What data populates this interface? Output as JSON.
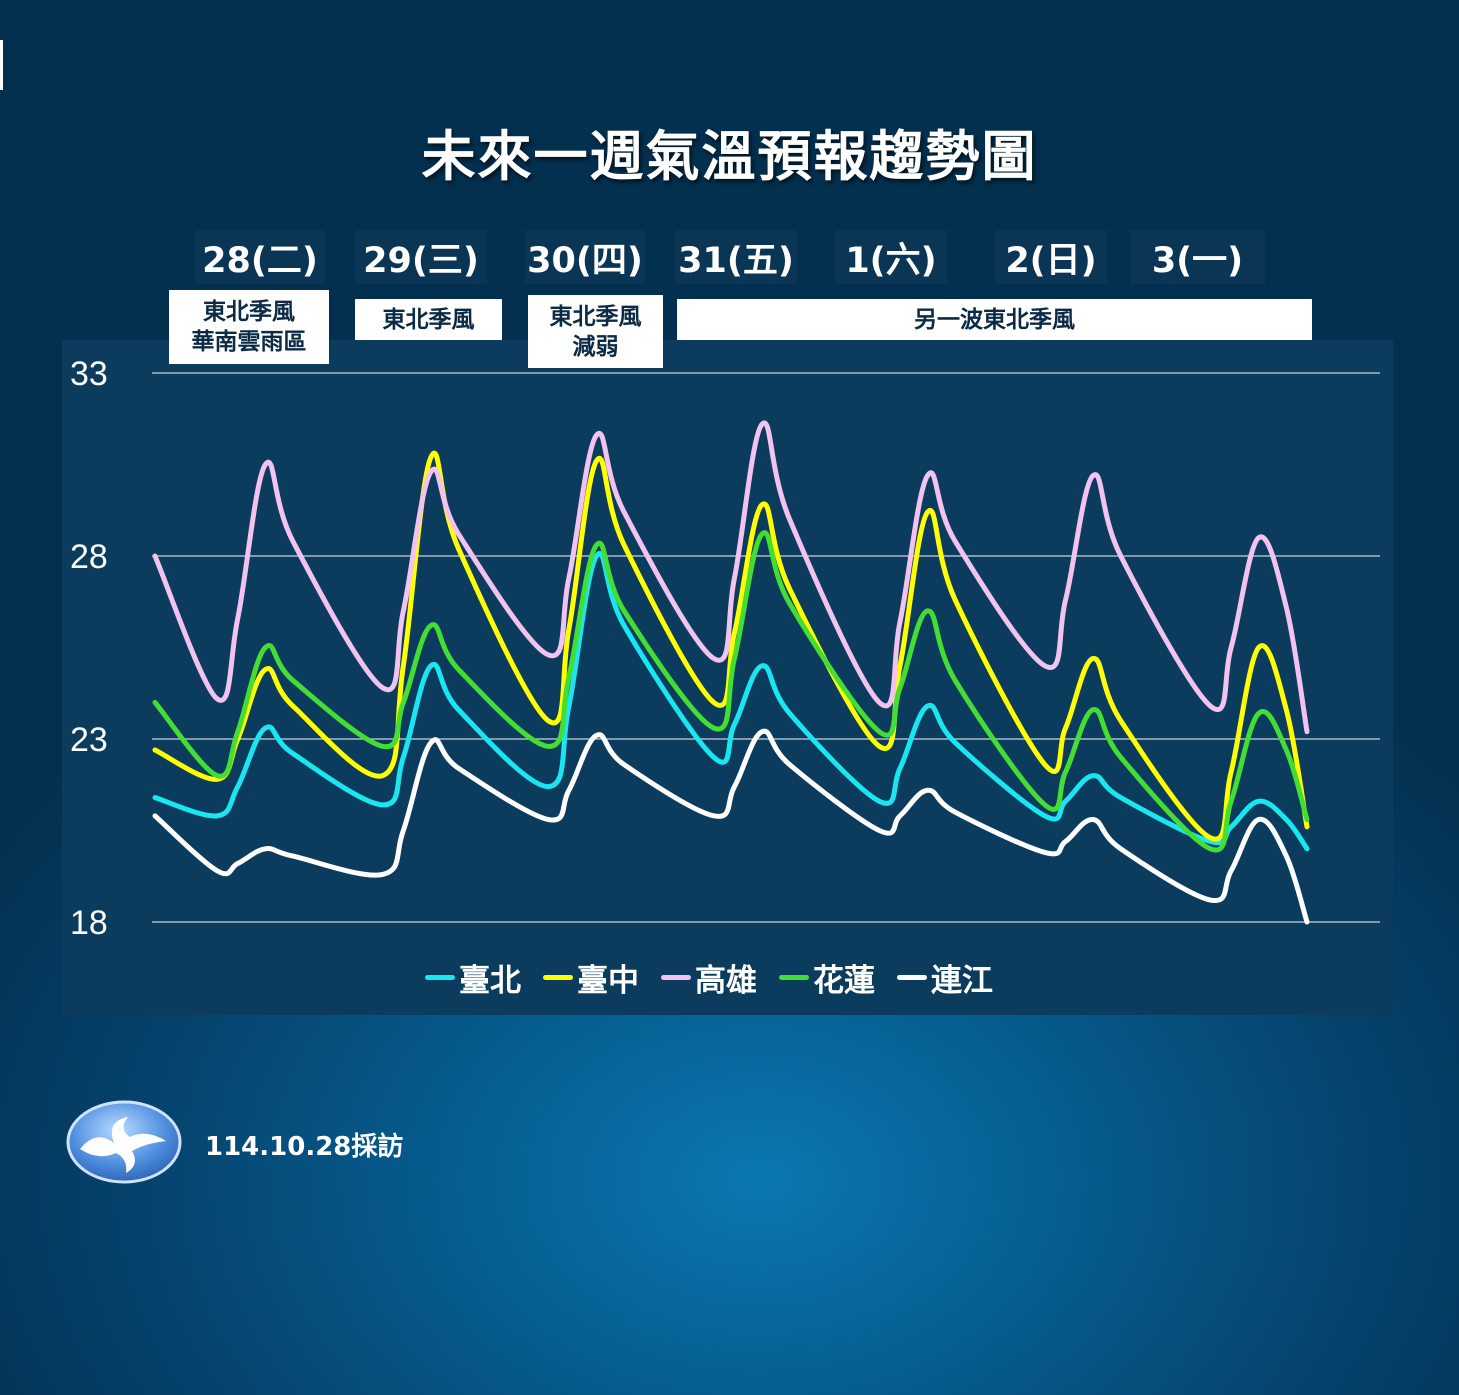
{
  "title": "未來一週氣溫預報趨勢圖",
  "days": [
    "28(二)",
    "29(三)",
    "30(四)",
    "31(五)",
    "1(六)",
    "2(日)",
    "3(一)"
  ],
  "notes": [
    {
      "lines": [
        "東北季風",
        "華南雲雨區"
      ]
    },
    {
      "lines": [
        "東北季風"
      ]
    },
    {
      "lines": [
        "東北季風",
        "減弱"
      ]
    },
    {
      "lines": [
        "另一波東北季風"
      ]
    }
  ],
  "footer": {
    "date_text": "114.10.28採訪",
    "logo_icon": "cwa-logo-icon"
  },
  "chart_data": {
    "type": "line",
    "title": "未來一週氣溫預報趨勢圖",
    "ylim": [
      18,
      33
    ],
    "yticks": [
      18,
      23,
      28,
      33
    ],
    "grid": true,
    "legend_placement": "bottom",
    "x": [
      "10/28 00",
      "10/28 09",
      "10/28 12",
      "10/28 16",
      "10/28 20",
      "10/29 09",
      "10/29 12",
      "10/29 16",
      "10/29 20",
      "10/30 09",
      "10/30 12",
      "10/30 16",
      "10/30 20",
      "10/31 09",
      "10/31 12",
      "10/31 16",
      "10/31 20",
      "11/01 09",
      "11/01 12",
      "11/01 16",
      "11/01 20",
      "11/02 09",
      "11/02 12",
      "11/02 16",
      "11/02 20",
      "11/03 09",
      "11/03 12",
      "11/03 16",
      "11/03 20",
      "11/03 23"
    ],
    "series": [
      {
        "name": "臺北",
        "color": "#19e6f0",
        "values": [
          21.4,
          20.9,
          21.7,
          23.3,
          22.6,
          21.2,
          22.5,
          25.0,
          23.8,
          21.7,
          23.9,
          28.0,
          26.1,
          22.5,
          23.4,
          25.0,
          23.7,
          21.3,
          22.2,
          23.9,
          22.9,
          20.9,
          21.3,
          22.0,
          21.4,
          20.2,
          20.6,
          21.3,
          20.8,
          20.0
        ]
      },
      {
        "name": "臺中",
        "color": "#ffff00",
        "values": [
          22.7,
          21.9,
          23.0,
          24.9,
          23.9,
          22.0,
          25.0,
          30.7,
          28.2,
          23.5,
          26.0,
          30.6,
          28.3,
          24.0,
          25.9,
          29.4,
          27.1,
          22.8,
          25.0,
          29.2,
          26.8,
          22.3,
          23.3,
          25.2,
          23.5,
          20.3,
          22.1,
          25.5,
          23.8,
          20.6
        ]
      },
      {
        "name": "高雄",
        "color": "#f2c2f0",
        "values": [
          28.0,
          24.1,
          26.3,
          30.5,
          28.4,
          24.4,
          26.5,
          30.3,
          28.6,
          25.3,
          27.4,
          31.3,
          29.2,
          25.2,
          27.4,
          31.6,
          29.0,
          24.0,
          26.2,
          30.2,
          28.4,
          25.0,
          26.8,
          30.2,
          28.0,
          23.9,
          25.5,
          28.5,
          26.6,
          23.2
        ]
      },
      {
        "name": "花蓮",
        "color": "#44dd33",
        "values": [
          24.0,
          22.0,
          23.2,
          25.5,
          24.6,
          22.8,
          24.0,
          26.1,
          24.9,
          22.8,
          24.7,
          28.3,
          26.5,
          23.3,
          25.2,
          28.6,
          26.7,
          23.2,
          24.4,
          26.5,
          24.6,
          21.2,
          22.1,
          23.8,
          22.5,
          20.0,
          21.3,
          23.7,
          22.7,
          20.8
        ]
      },
      {
        "name": "連江",
        "color": "#ffffff",
        "values": [
          20.9,
          19.4,
          19.6,
          20.0,
          19.8,
          19.3,
          20.5,
          22.9,
          22.2,
          20.8,
          21.6,
          23.1,
          22.3,
          20.9,
          21.7,
          23.2,
          22.3,
          20.5,
          20.9,
          21.6,
          21.0,
          19.9,
          20.2,
          20.8,
          20.0,
          18.6,
          19.4,
          20.8,
          19.8,
          18.0
        ]
      }
    ]
  }
}
